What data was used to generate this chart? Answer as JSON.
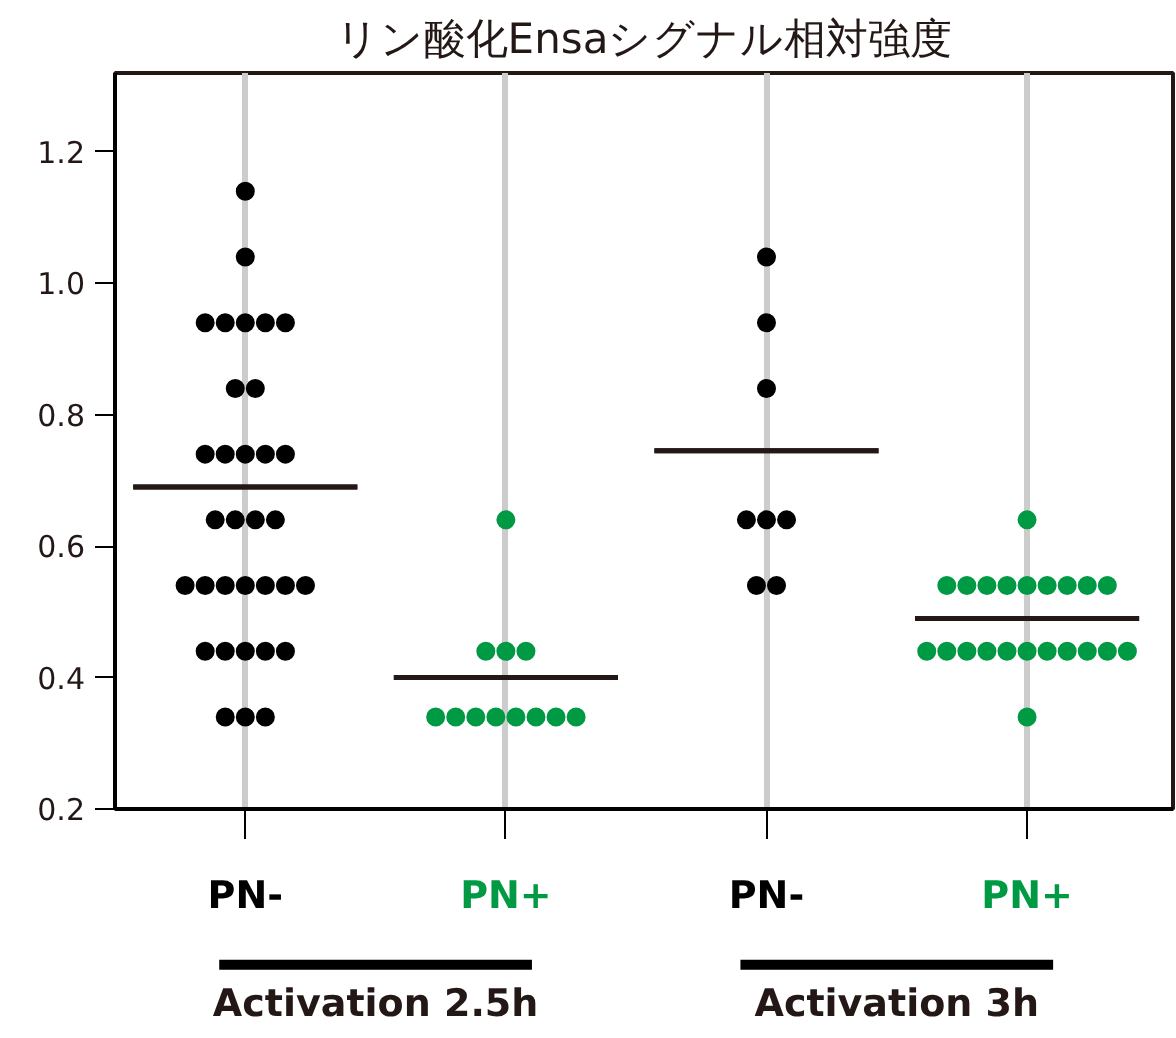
{
  "chart_data": {
    "type": "scatter",
    "title": "リン酸化Ensaシグナル相対強度",
    "categories": [
      "PN-",
      "PN+",
      "PN-",
      "PN+"
    ],
    "series": [
      {
        "colors": [
          "#000000",
          "#009944",
          "#000000",
          "#009944"
        ],
        "values": [
          1.14,
          0.64,
          1.04,
          0.64
        ]
      },
      {
        "colors": [
          "#000000",
          "#009944",
          "#000000",
          "#009944"
        ],
        "values": [
          1.04,
          0.44,
          0.94,
          0.54
        ]
      },
      {
        "colors": [
          "#000000",
          "#009944",
          "#000000",
          "#009944"
        ],
        "values": [
          0.94,
          0.44,
          0.84,
          0.54
        ]
      },
      {
        "colors": [
          "#000000",
          "#009944",
          "#000000",
          "#009944"
        ],
        "values": [
          0.94,
          0.44,
          0.64,
          0.54
        ]
      },
      {
        "colors": [
          "#000000",
          "#009944",
          "#000000",
          "#009944"
        ],
        "values": [
          0.94,
          0.34,
          0.64,
          0.54
        ]
      },
      {
        "colors": [
          "#000000",
          "#009944",
          "#000000",
          "#009944"
        ],
        "values": [
          0.94,
          0.34,
          0.64,
          0.54
        ]
      },
      {
        "colors": [
          "#000000",
          "#009944",
          "#000000",
          "#009944"
        ],
        "values": [
          0.94,
          0.34,
          0.54,
          0.54
        ]
      },
      {
        "colors": [
          "#000000",
          "#009944",
          "#000000",
          "#009944"
        ],
        "values": [
          0.84,
          0.34,
          0.54,
          0.54
        ]
      },
      {
        "colors": [
          "#000000",
          "#009944",
          "#000000",
          "#009944"
        ],
        "values": [
          0.84,
          0.34,
          null,
          0.54
        ]
      },
      {
        "colors": [
          "#000000",
          "#009944",
          "#000000",
          "#009944"
        ],
        "values": [
          0.74,
          0.34,
          null,
          0.54
        ]
      },
      {
        "colors": [
          "#000000",
          "#009944",
          "#000000",
          "#009944"
        ],
        "values": [
          0.74,
          0.34,
          null,
          0.44
        ]
      },
      {
        "colors": [
          "#000000",
          "#009944",
          "#000000",
          "#009944"
        ],
        "values": [
          0.74,
          0.34,
          null,
          0.44
        ]
      },
      {
        "colors": [
          "#000000",
          "#009944",
          "#000000",
          "#009944"
        ],
        "values": [
          0.74,
          null,
          null,
          0.44
        ]
      },
      {
        "colors": [
          "#000000",
          "#009944",
          "#000000",
          "#009944"
        ],
        "values": [
          0.74,
          null,
          null,
          0.44
        ]
      },
      {
        "colors": [
          "#000000",
          "#009944",
          "#000000",
          "#009944"
        ],
        "values": [
          0.64,
          null,
          null,
          0.44
        ]
      },
      {
        "colors": [
          "#000000",
          "#009944",
          "#000000",
          "#009944"
        ],
        "values": [
          0.64,
          null,
          null,
          0.44
        ]
      },
      {
        "colors": [
          "#000000",
          "#009944",
          "#000000",
          "#009944"
        ],
        "values": [
          0.64,
          null,
          null,
          0.44
        ]
      },
      {
        "colors": [
          "#000000",
          "#009944",
          "#000000",
          "#009944"
        ],
        "values": [
          0.64,
          null,
          null,
          0.44
        ]
      },
      {
        "colors": [
          "#000000",
          "#009944",
          "#000000",
          "#009944"
        ],
        "values": [
          0.54,
          null,
          null,
          0.44
        ]
      },
      {
        "colors": [
          "#000000",
          "#009944",
          "#000000",
          "#009944"
        ],
        "values": [
          0.54,
          null,
          null,
          0.44
        ]
      },
      {
        "colors": [
          "#000000",
          "#009944",
          "#000000",
          "#009944"
        ],
        "values": [
          0.54,
          null,
          null,
          0.44
        ]
      },
      {
        "colors": [
          "#000000",
          "#009944",
          "#000000",
          "#009944"
        ],
        "values": [
          0.54,
          null,
          null,
          0.34
        ]
      },
      {
        "colors": [
          "#000000",
          "#009944",
          "#000000",
          "#009944"
        ],
        "values": [
          0.54,
          null,
          null,
          null
        ]
      },
      {
        "colors": [
          "#000000",
          "#009944",
          "#000000",
          "#009944"
        ],
        "values": [
          0.54,
          null,
          null,
          null
        ]
      },
      {
        "colors": [
          "#000000",
          "#009944",
          "#000000",
          "#009944"
        ],
        "values": [
          0.54,
          null,
          null,
          null
        ]
      },
      {
        "colors": [
          "#000000",
          "#009944",
          "#000000",
          "#009944"
        ],
        "values": [
          0.44,
          null,
          null,
          null
        ]
      },
      {
        "colors": [
          "#000000",
          "#009944",
          "#000000",
          "#009944"
        ],
        "values": [
          0.44,
          null,
          null,
          null
        ]
      },
      {
        "colors": [
          "#000000",
          "#009944",
          "#000000",
          "#009944"
        ],
        "values": [
          0.44,
          null,
          null,
          null
        ]
      },
      {
        "colors": [
          "#000000",
          "#009944",
          "#000000",
          "#009944"
        ],
        "values": [
          0.44,
          null,
          null,
          null
        ]
      },
      {
        "colors": [
          "#000000",
          "#009944",
          "#000000",
          "#009944"
        ],
        "values": [
          0.44,
          null,
          null,
          null
        ]
      },
      {
        "colors": [
          "#000000",
          "#009944",
          "#000000",
          "#009944"
        ],
        "values": [
          0.34,
          null,
          null,
          null
        ]
      },
      {
        "colors": [
          "#000000",
          "#009944",
          "#000000",
          "#009944"
        ],
        "values": [
          0.34,
          null,
          null,
          null
        ]
      },
      {
        "colors": [
          "#000000",
          "#009944",
          "#000000",
          "#009944"
        ],
        "values": [
          0.34,
          null,
          null,
          null
        ]
      },
      {
        "type": "box",
        "color": "#231815",
        "boxes": [
          {
            "low": 0.69,
            "q1": 0.69,
            "median": 0.69,
            "q3": 0.69,
            "high": 0.69
          },
          {
            "low": 0.4,
            "q1": 0.4,
            "median": 0.4,
            "q3": 0.4,
            "high": 0.4
          },
          {
            "low": 0.745,
            "q1": 0.745,
            "median": 0.745,
            "q3": 0.745,
            "high": 0.745
          },
          {
            "low": 0.49,
            "q1": 0.49,
            "median": 0.49,
            "q3": 0.49,
            "high": 0.49
          }
        ]
      }
    ],
    "annotations": [
      "Activation 2.5h",
      "Activation 3h"
    ],
    "ylim": [
      0.2,
      1.32
    ],
    "yticks": [
      0.2,
      0.4,
      0.6,
      0.8,
      {
        "value": 1.0,
        "label": "1.0"
      },
      1.2
    ],
    "grid": "x",
    "marker": "circle"
  }
}
